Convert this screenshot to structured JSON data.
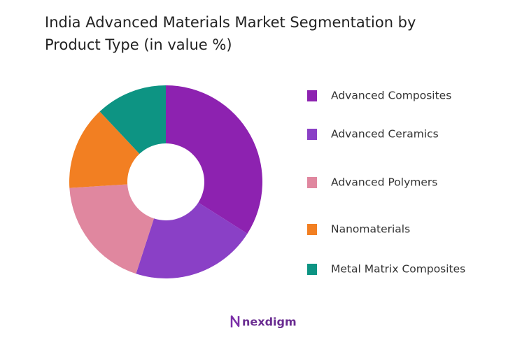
{
  "chart_data": {
    "type": "donut",
    "title": "India Advanced Materials Market Segmentation by Product Type (in value %)",
    "categories": [
      "Advanced Composites",
      "Advanced Ceramics",
      "Advanced Polymers",
      "Nanomaterials",
      "Metal Matrix Composites"
    ],
    "values": [
      34,
      21,
      19,
      14,
      12
    ],
    "colors": [
      "#8d22b0",
      "#8a40c6",
      "#e0879f",
      "#f27f22",
      "#0d9483"
    ],
    "legend": "right"
  },
  "logo": "nexdigm"
}
